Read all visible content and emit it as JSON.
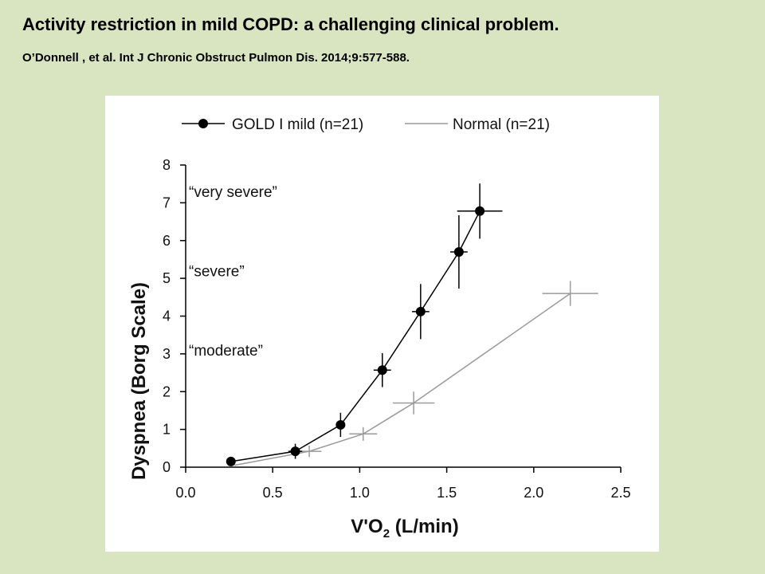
{
  "slide": {
    "title": "Activity restriction in mild COPD: a challenging clinical problem.",
    "citation": "O’Donnell , et al. Int J Chronic Obstruct Pulmon Dis. 2014;9:577-588."
  },
  "chart_data": {
    "type": "line",
    "xlabel_main": "V'O",
    "xlabel_sub": "2",
    "xlabel_unit": " (L/min)",
    "ylabel": "Dyspnea (Borg Scale)",
    "xlim": [
      0,
      2.5
    ],
    "ylim": [
      0,
      8
    ],
    "x_ticks": [
      "0.0",
      "0.5",
      "1.0",
      "1.5",
      "2.0",
      "2.5"
    ],
    "y_ticks": [
      "0",
      "1",
      "2",
      "3",
      "4",
      "5",
      "6",
      "7",
      "8"
    ],
    "grid": false,
    "legend_position": "top",
    "annotations": [
      {
        "text": "“very severe”",
        "y": 7.3
      },
      {
        "text": "“severe”",
        "y": 5.2
      },
      {
        "text": "“moderate”",
        "y": 3.1
      }
    ],
    "series": [
      {
        "name": "GOLD I mild (n=21)",
        "color": "#000000",
        "marker": "filled-circle",
        "points": [
          {
            "x": 0.26,
            "y": 0.15,
            "xerr": 0,
            "yerr": 0
          },
          {
            "x": 0.63,
            "y": 0.42,
            "xerr": 0.04,
            "yerr": 0.2
          },
          {
            "x": 0.89,
            "y": 1.12,
            "xerr": 0.02,
            "yerr": 0.32
          },
          {
            "x": 1.13,
            "y": 2.57,
            "xerr": 0.05,
            "yerr": 0.45
          },
          {
            "x": 1.35,
            "y": 4.12,
            "xerr": 0.05,
            "yerr": 0.73
          },
          {
            "x": 1.57,
            "y": 5.7,
            "xerr": 0.05,
            "yerr": 0.97
          },
          {
            "x": 1.69,
            "y": 6.78,
            "xerr": 0.13,
            "yerr": 0.73
          }
        ]
      },
      {
        "name": "Normal (n=21)",
        "color": "#9a9a9a",
        "marker": "cross",
        "points": [
          {
            "x": 0.28,
            "y": 0.05,
            "xerr": 0,
            "yerr": 0
          },
          {
            "x": 0.71,
            "y": 0.42,
            "xerr": 0.07,
            "yerr": 0.15
          },
          {
            "x": 1.02,
            "y": 0.88,
            "xerr": 0.08,
            "yerr": 0.18
          },
          {
            "x": 1.31,
            "y": 1.7,
            "xerr": 0.12,
            "yerr": 0.3
          },
          {
            "x": 2.21,
            "y": 4.6,
            "xerr": 0.16,
            "yerr": 0.33
          }
        ]
      }
    ]
  }
}
